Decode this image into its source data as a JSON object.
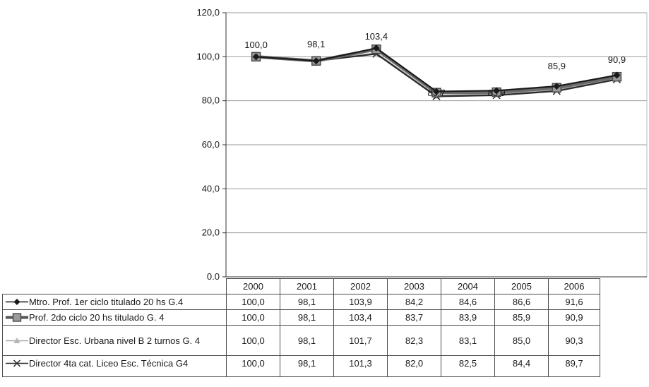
{
  "chart_data": {
    "type": "line",
    "categories": [
      "2000",
      "2001",
      "2002",
      "2003",
      "2004",
      "2005",
      "2006"
    ],
    "ylim": [
      0,
      120
    ],
    "yticks": [
      "0,0",
      "20,0",
      "40,0",
      "60,0",
      "80,0",
      "100,0",
      "120,0"
    ],
    "grid": true,
    "legend": "table-below",
    "series": [
      {
        "name": "Mtro. Prof. 1er ciclo titulado 20 hs G.4",
        "values": [
          100.0,
          98.1,
          103.9,
          84.2,
          84.6,
          86.6,
          91.6
        ],
        "display": [
          "100,0",
          "98,1",
          "103,9",
          "84,2",
          "84,6",
          "86,6",
          "91,6"
        ],
        "marker": "diamond",
        "color": "#1a1a1a"
      },
      {
        "name": "Prof. 2do ciclo 20 hs titulado G. 4",
        "values": [
          100.0,
          98.1,
          103.4,
          83.7,
          83.9,
          85.9,
          90.9
        ],
        "display": [
          "100,0",
          "98,1",
          "103,4",
          "83,7",
          "83,9",
          "85,9",
          "90,9"
        ],
        "marker": "square",
        "color": "#6b6b6b"
      },
      {
        "name": "Director Esc. Urbana nivel B 2 turnos G. 4",
        "values": [
          100.0,
          98.1,
          101.7,
          82.3,
          83.1,
          85.0,
          90.3
        ],
        "display": [
          "100,0",
          "98,1",
          "101,7",
          "82,3",
          "83,1",
          "85,0",
          "90,3"
        ],
        "marker": "triangle",
        "color": "#a8a8a8"
      },
      {
        "name": "Director 4ta cat. Liceo Esc. Técnica G4",
        "values": [
          100.0,
          98.1,
          101.3,
          82.0,
          82.5,
          84.4,
          89.7
        ],
        "display": [
          "100,0",
          "98,1",
          "101,3",
          "82,0",
          "82,5",
          "84,4",
          "89,7"
        ],
        "marker": "x",
        "color": "#2a2a2a"
      }
    ],
    "data_labels": [
      "100,0",
      "98,1",
      "103,4",
      "83,7",
      "83,9",
      "85,9",
      "90,9"
    ]
  }
}
